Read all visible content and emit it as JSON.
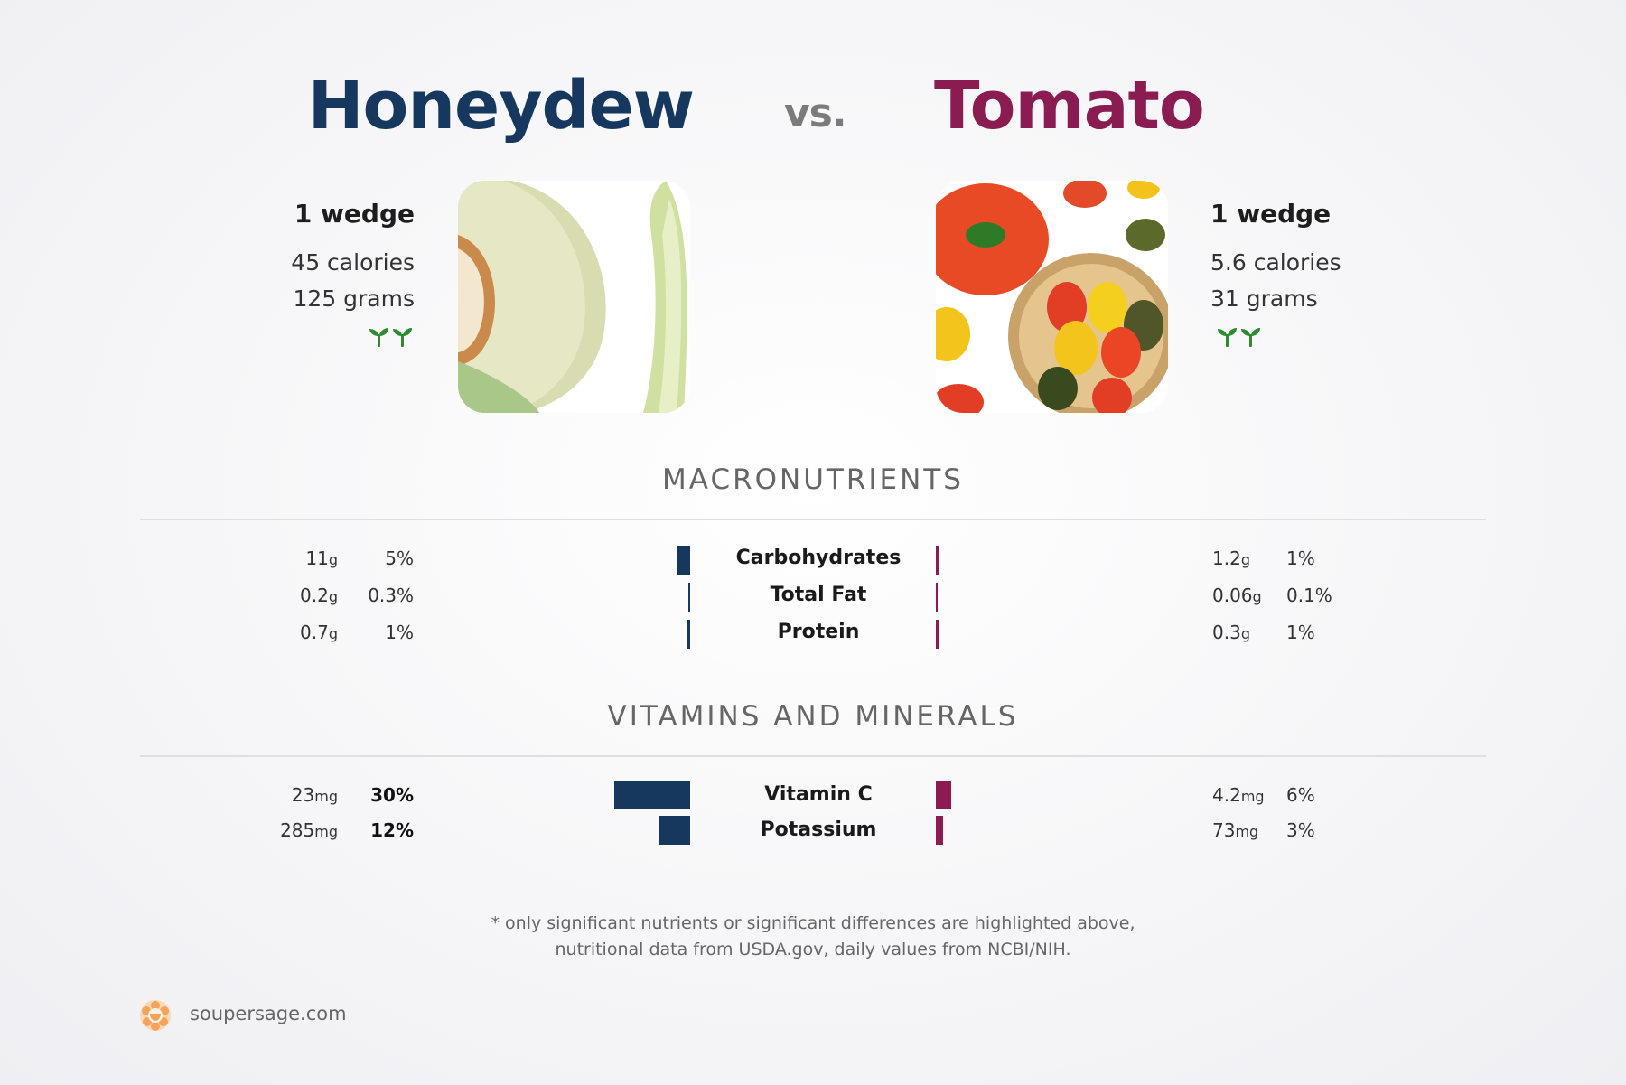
{
  "header": {
    "left_name": "Honeydew",
    "vs_label": "vs.",
    "right_name": "Tomato",
    "left_color": "#16375e",
    "right_color": "#8b1c52"
  },
  "left_food": {
    "serving": "1 wedge",
    "calories": "45 calories",
    "grams": "125 grams",
    "icon": "sprout-icon"
  },
  "right_food": {
    "serving": "1 wedge",
    "calories": "5.6 calories",
    "grams": "31 grams",
    "icon": "sprout-icon"
  },
  "sections": {
    "macros_title": "MACRONUTRIENTS",
    "vitamins_title": "VITAMINS AND MINERALS"
  },
  "chart_data": {
    "type": "bar",
    "series": [
      {
        "name": "Honeydew",
        "color": "#16375e"
      },
      {
        "name": "Tomato",
        "color": "#8b1c52"
      }
    ],
    "macros": [
      {
        "label": "Carbohydrates",
        "left_amount": "11",
        "left_unit": "g",
        "left_pct": "5%",
        "left_value": 5,
        "right_amount": "1.2",
        "right_unit": "g",
        "right_pct": "1%",
        "right_value": 1
      },
      {
        "label": "Total Fat",
        "left_amount": "0.2",
        "left_unit": "g",
        "left_pct": "0.3%",
        "left_value": 0.3,
        "right_amount": "0.06",
        "right_unit": "g",
        "right_pct": "0.1%",
        "right_value": 0.1
      },
      {
        "label": "Protein",
        "left_amount": "0.7",
        "left_unit": "g",
        "left_pct": "1%",
        "left_value": 1,
        "right_amount": "0.3",
        "right_unit": "g",
        "right_pct": "1%",
        "right_value": 1
      }
    ],
    "vitamins": [
      {
        "label": "Vitamin C",
        "left_amount": "23",
        "left_unit": "mg",
        "left_pct": "30%",
        "left_value": 30,
        "left_highlight": true,
        "right_amount": "4.2",
        "right_unit": "mg",
        "right_pct": "6%",
        "right_value": 6
      },
      {
        "label": "Potassium",
        "left_amount": "285",
        "left_unit": "mg",
        "left_pct": "12%",
        "left_value": 12,
        "left_highlight": true,
        "right_amount": "73",
        "right_unit": "mg",
        "right_pct": "3%",
        "right_value": 3
      }
    ]
  },
  "footnote": {
    "line1": "* only significant nutrients or significant differences are highlighted above,",
    "line2": "nutritional data from USDA.gov, daily values from NCBI/NIH."
  },
  "brand": {
    "name": "soupersage.com",
    "logo_color": "#f5a35a"
  }
}
